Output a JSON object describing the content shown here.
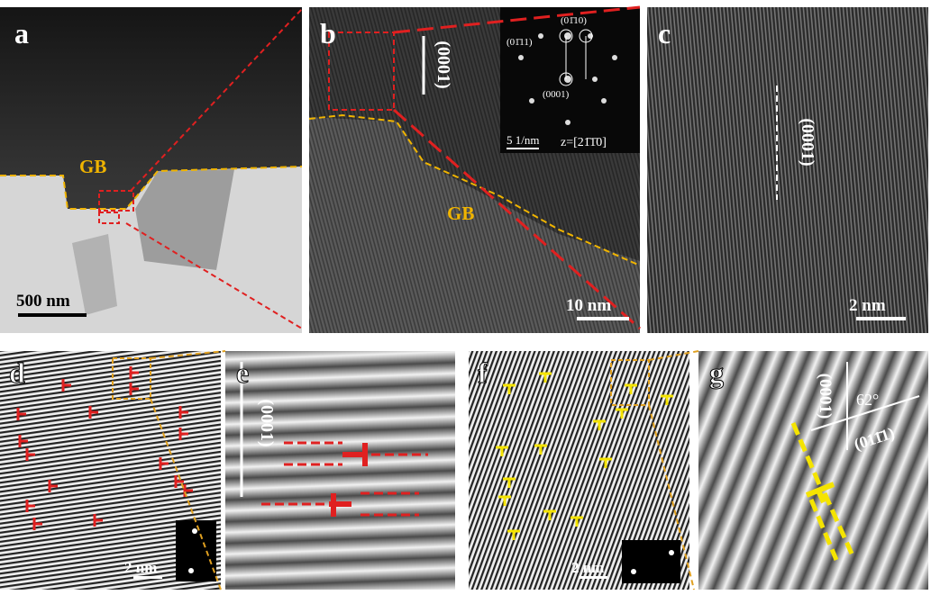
{
  "panels": [
    {
      "label": "a",
      "gb_label": "GB",
      "scale_bar": "500 nm"
    },
    {
      "label": "b",
      "gb_label": "GB",
      "scale_bar": "10 nm",
      "plane": "(0001)",
      "inset": {
        "spot_top": "(01̄10)",
        "spot_left": "(01̄11)",
        "spot_bottom": "(0001)",
        "scale_bar": "5 1/nm",
        "zone_axis": "z=[21̄1̄0]"
      }
    },
    {
      "label": "c",
      "plane": "(0001)",
      "scale_bar": "2 nm"
    },
    {
      "label": "d",
      "scale_bar": "2 nm"
    },
    {
      "label": "e",
      "plane": "(0001)"
    },
    {
      "label": "f",
      "scale_bar": "2 nm"
    },
    {
      "label": "g",
      "plane": "(0001)",
      "angle": "62°",
      "plane2": "(011̄1)"
    }
  ]
}
